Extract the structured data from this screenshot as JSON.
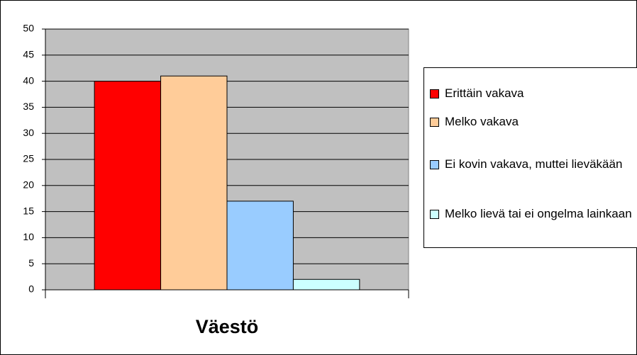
{
  "chart_data": {
    "type": "bar",
    "categories": [
      "Väestö"
    ],
    "series": [
      {
        "name": "Erittäin vakava",
        "color": "#ff0000",
        "values": [
          40
        ]
      },
      {
        "name": "Melko vakava",
        "color": "#ffcc99",
        "values": [
          41
        ]
      },
      {
        "name": "Ei kovin vakava, muttei lieväkään",
        "color": "#99ccff",
        "values": [
          17
        ]
      },
      {
        "name": "Melko lievä tai ei ongelma lainkaan",
        "color": "#ccffff",
        "values": [
          2
        ]
      }
    ],
    "ylim": [
      0,
      50
    ],
    "yticks": [
      0,
      5,
      10,
      15,
      20,
      25,
      30,
      35,
      40,
      45,
      50
    ],
    "grid": true,
    "legend": "right",
    "plot_background": "#c0c0c0"
  }
}
